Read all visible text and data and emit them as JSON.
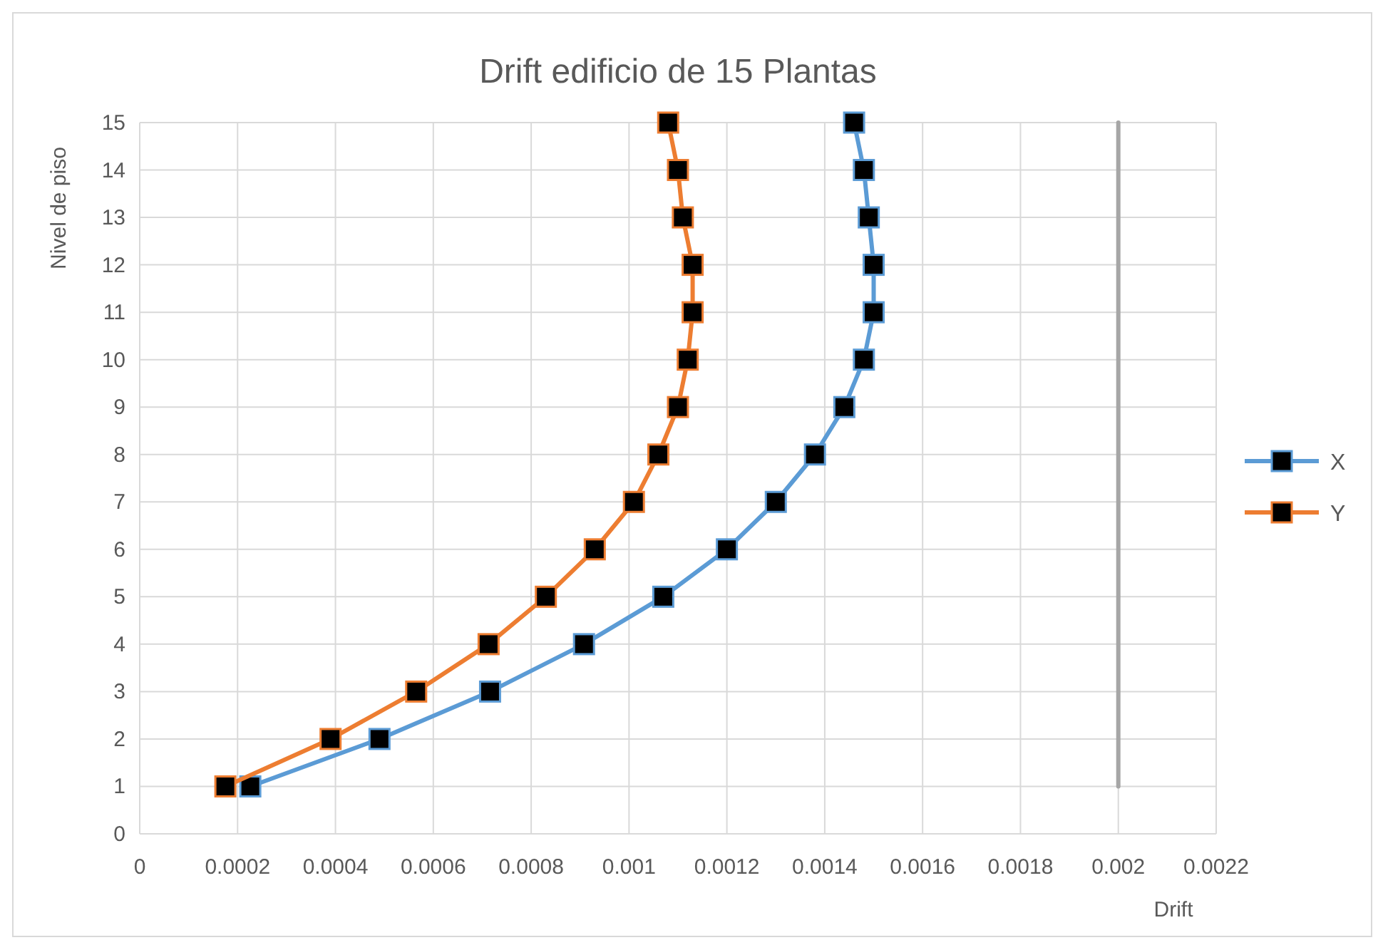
{
  "chart_data": {
    "type": "line",
    "title": "Drift edificio de 15 Plantas",
    "xlabel": "Drift",
    "ylabel": "Nivel de piso",
    "x": [
      0.000226,
      0.00049,
      0.000716,
      0.000908,
      0.00107,
      0.0012,
      0.0013,
      0.00138,
      0.00144,
      0.00148,
      0.0015,
      0.0015,
      0.00149,
      0.00148,
      0.00146
    ],
    "series": [
      {
        "name": "X",
        "color": "#5b9bd5",
        "values": [
          1,
          2,
          3,
          4,
          5,
          6,
          7,
          8,
          9,
          10,
          11,
          12,
          13,
          14,
          15
        ]
      },
      {
        "name": "Y",
        "color": "#ed7d31",
        "x": [
          0.000175,
          0.00039,
          0.000565,
          0.000713,
          0.00083,
          0.00093,
          0.00101,
          0.00106,
          0.0011,
          0.00112,
          0.00113,
          0.00113,
          0.00111,
          0.0011,
          0.00108
        ],
        "values": [
          1,
          2,
          3,
          4,
          5,
          6,
          7,
          8,
          9,
          10,
          11,
          12,
          13,
          14,
          15
        ]
      },
      {
        "color": "#a6a6a6",
        "x": [
          0.002,
          0.002
        ],
        "values": [
          1,
          15
        ],
        "marker": "none"
      }
    ],
    "xlim": [
      0,
      0.0022
    ],
    "xticks": [
      0,
      0.0002,
      0.0004,
      0.0006,
      0.0008,
      0.001,
      0.0012,
      0.0014,
      0.0016,
      0.0018,
      0.002,
      0.0022
    ],
    "ylim": [
      0,
      15
    ],
    "yticks": [
      0,
      1,
      2,
      3,
      4,
      5,
      6,
      7,
      8,
      9,
      10,
      11,
      12,
      13,
      14,
      15
    ],
    "grid": true,
    "legend": "right",
    "marker": "square"
  }
}
